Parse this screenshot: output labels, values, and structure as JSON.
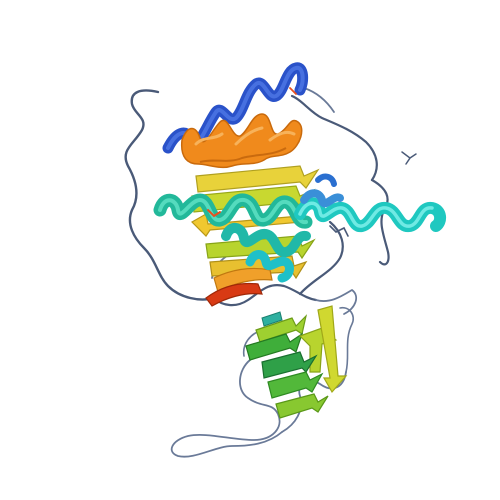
{
  "viewer": {
    "background": "#ffffff",
    "representation": "cartoon",
    "color_scheme": "rainbow",
    "palette": {
      "blue": "#2a52c9",
      "sky": "#3a8fd8",
      "cyan": "#1fc8c0",
      "teal": "#22b89a",
      "green": "#3fae3a",
      "lime": "#b8d42e",
      "yellow": "#e8d23a",
      "orange": "#f08a1c",
      "red": "#d83a14",
      "coil": "#4a5a78",
      "coil_light": "#6a7a98"
    }
  }
}
